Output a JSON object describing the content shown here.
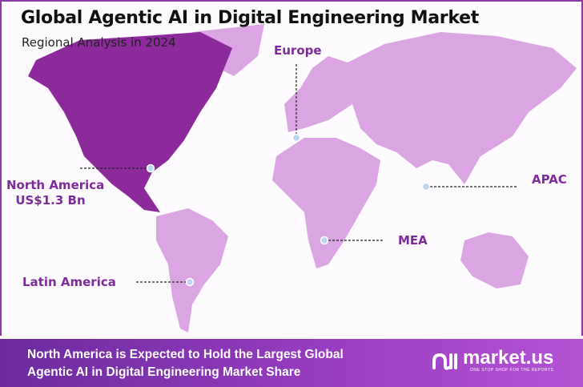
{
  "header": {
    "title": "Global Agentic AI in Digital Engineering Market",
    "subtitle": "Regional Analysis in 2024"
  },
  "regions": [
    {
      "name": "North America",
      "value": "US$1.3 Bn",
      "highlighted": true
    },
    {
      "name": "Europe"
    },
    {
      "name": "APAC"
    },
    {
      "name": "MEA"
    },
    {
      "name": "Latin America"
    }
  ],
  "colors": {
    "highlight": "#8c2a9c",
    "land": "#dba4e2",
    "label": "#7e2a9a",
    "banner": "#8a36b8"
  },
  "banner": {
    "text_line1": "North America is Expected to Hold the Largest Global",
    "text_line2": "Agentic AI in Digital Engineering Market Share"
  },
  "logo": {
    "name": "market.us",
    "tagline": "ONE STOP SHOP FOR THE REPORTS"
  }
}
